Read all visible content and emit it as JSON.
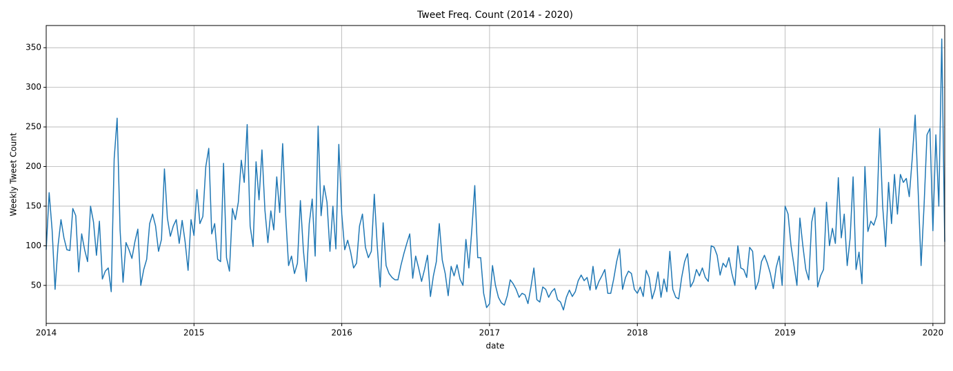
{
  "chart_data": {
    "type": "line",
    "title": "Tweet Freq. Count (2014 - 2020)",
    "x_label": "date",
    "y_label": "Weekly Tweet Count",
    "color": "#1f77b4",
    "grid": true,
    "xlim": [
      2014,
      2020.08
    ],
    "xticks": [
      2014,
      2015,
      2016,
      2017,
      2018,
      2019,
      2020
    ],
    "ylim": [
      2,
      378
    ],
    "yticks": [
      50,
      100,
      150,
      200,
      250,
      300,
      350
    ],
    "x": [
      2014.0,
      2014.02,
      2014.04,
      2014.06,
      2014.08,
      2014.1,
      2014.12,
      2014.14,
      2014.16,
      2014.18,
      2014.2,
      2014.22,
      2014.24,
      2014.26,
      2014.28,
      2014.3,
      2014.32,
      2014.34,
      2014.36,
      2014.38,
      2014.4,
      2014.42,
      2014.44,
      2014.46,
      2014.48,
      2014.5,
      2014.52,
      2014.54,
      2014.56,
      2014.58,
      2014.6,
      2014.62,
      2014.64,
      2014.66,
      2014.68,
      2014.7,
      2014.72,
      2014.74,
      2014.76,
      2014.78,
      2014.8,
      2014.82,
      2014.84,
      2014.86,
      2014.88,
      2014.9,
      2014.92,
      2014.94,
      2014.96,
      2014.98,
      2015.0,
      2015.02,
      2015.04,
      2015.06,
      2015.08,
      2015.1,
      2015.12,
      2015.14,
      2015.16,
      2015.18,
      2015.2,
      2015.22,
      2015.24,
      2015.26,
      2015.28,
      2015.3,
      2015.32,
      2015.34,
      2015.36,
      2015.38,
      2015.4,
      2015.42,
      2015.44,
      2015.46,
      2015.48,
      2015.5,
      2015.52,
      2015.54,
      2015.56,
      2015.58,
      2015.6,
      2015.62,
      2015.64,
      2015.66,
      2015.68,
      2015.7,
      2015.72,
      2015.74,
      2015.76,
      2015.78,
      2015.8,
      2015.82,
      2015.84,
      2015.86,
      2015.88,
      2015.9,
      2015.92,
      2015.94,
      2015.96,
      2015.98,
      2016.0,
      2016.02,
      2016.04,
      2016.06,
      2016.08,
      2016.1,
      2016.12,
      2016.14,
      2016.16,
      2016.18,
      2016.2,
      2016.22,
      2016.24,
      2016.26,
      2016.28,
      2016.3,
      2016.32,
      2016.34,
      2016.36,
      2016.38,
      2016.4,
      2016.42,
      2016.44,
      2016.46,
      2016.48,
      2016.5,
      2016.52,
      2016.54,
      2016.56,
      2016.58,
      2016.6,
      2016.62,
      2016.64,
      2016.66,
      2016.68,
      2016.7,
      2016.72,
      2016.74,
      2016.76,
      2016.78,
      2016.8,
      2016.82,
      2016.84,
      2016.86,
      2016.88,
      2016.9,
      2016.92,
      2016.94,
      2016.96,
      2016.98,
      2017.0,
      2017.02,
      2017.04,
      2017.06,
      2017.08,
      2017.1,
      2017.12,
      2017.14,
      2017.16,
      2017.18,
      2017.2,
      2017.22,
      2017.24,
      2017.26,
      2017.28,
      2017.3,
      2017.32,
      2017.34,
      2017.36,
      2017.38,
      2017.4,
      2017.42,
      2017.44,
      2017.46,
      2017.48,
      2017.5,
      2017.52,
      2017.54,
      2017.56,
      2017.58,
      2017.6,
      2017.62,
      2017.64,
      2017.66,
      2017.68,
      2017.7,
      2017.72,
      2017.74,
      2017.76,
      2017.78,
      2017.8,
      2017.82,
      2017.84,
      2017.86,
      2017.88,
      2017.9,
      2017.92,
      2017.94,
      2017.96,
      2017.98,
      2018.0,
      2018.02,
      2018.04,
      2018.06,
      2018.08,
      2018.1,
      2018.12,
      2018.14,
      2018.16,
      2018.18,
      2018.2,
      2018.22,
      2018.24,
      2018.26,
      2018.28,
      2018.3,
      2018.32,
      2018.34,
      2018.36,
      2018.38,
      2018.4,
      2018.42,
      2018.44,
      2018.46,
      2018.48,
      2018.5,
      2018.52,
      2018.54,
      2018.56,
      2018.58,
      2018.6,
      2018.62,
      2018.64,
      2018.66,
      2018.68,
      2018.7,
      2018.72,
      2018.74,
      2018.76,
      2018.78,
      2018.8,
      2018.82,
      2018.84,
      2018.86,
      2018.88,
      2018.9,
      2018.92,
      2018.94,
      2018.96,
      2018.98,
      2019.0,
      2019.02,
      2019.04,
      2019.06,
      2019.08,
      2019.1,
      2019.12,
      2019.14,
      2019.16,
      2019.18,
      2019.2,
      2019.22,
      2019.24,
      2019.26,
      2019.28,
      2019.3,
      2019.32,
      2019.34,
      2019.36,
      2019.38,
      2019.4,
      2019.42,
      2019.44,
      2019.46,
      2019.48,
      2019.5,
      2019.52,
      2019.54,
      2019.56,
      2019.58,
      2019.6,
      2019.62,
      2019.64,
      2019.66,
      2019.68,
      2019.7,
      2019.72,
      2019.74,
      2019.76,
      2019.78,
      2019.8,
      2019.82,
      2019.84,
      2019.86,
      2019.88,
      2019.9,
      2019.92,
      2019.94,
      2019.96,
      2019.98,
      2020.0,
      2020.02,
      2020.04,
      2020.06,
      2020.08
    ],
    "values": [
      95,
      167,
      120,
      45,
      100,
      133,
      110,
      95,
      94,
      147,
      138,
      67,
      115,
      95,
      80,
      150,
      130,
      88,
      131,
      58,
      68,
      72,
      42,
      210,
      261,
      120,
      54,
      104,
      95,
      84,
      105,
      121,
      50,
      70,
      83,
      128,
      140,
      125,
      93,
      108,
      197,
      135,
      112,
      125,
      133,
      103,
      132,
      105,
      69,
      133,
      113,
      171,
      128,
      137,
      200,
      223,
      115,
      128,
      83,
      80,
      204,
      85,
      68,
      147,
      133,
      155,
      208,
      180,
      253,
      125,
      99,
      206,
      158,
      221,
      145,
      104,
      144,
      120,
      187,
      142,
      229,
      140,
      75,
      87,
      65,
      78,
      157,
      95,
      55,
      128,
      159,
      87,
      251,
      138,
      176,
      155,
      93,
      150,
      96,
      228,
      140,
      95,
      107,
      92,
      72,
      78,
      125,
      140,
      98,
      85,
      93,
      165,
      100,
      48,
      129,
      75,
      65,
      60,
      57,
      57,
      75,
      90,
      103,
      115,
      59,
      87,
      72,
      55,
      70,
      88,
      36,
      62,
      80,
      128,
      82,
      65,
      37,
      74,
      62,
      76,
      58,
      50,
      108,
      72,
      120,
      176,
      85,
      85,
      40,
      22,
      27,
      75,
      50,
      35,
      28,
      25,
      37,
      57,
      52,
      45,
      35,
      40,
      38,
      27,
      48,
      72,
      32,
      29,
      48,
      45,
      35,
      42,
      46,
      32,
      29,
      19,
      35,
      44,
      36,
      42,
      56,
      63,
      56,
      60,
      44,
      74,
      45,
      55,
      62,
      70,
      40,
      40,
      58,
      80,
      96,
      45,
      60,
      68,
      65,
      45,
      40,
      48,
      36,
      69,
      60,
      33,
      45,
      67,
      35,
      58,
      42,
      93,
      45,
      35,
      33,
      60,
      80,
      90,
      48,
      55,
      70,
      62,
      72,
      60,
      55,
      100,
      98,
      88,
      63,
      78,
      73,
      85,
      65,
      50,
      100,
      72,
      70,
      60,
      98,
      93,
      45,
      55,
      80,
      88,
      78,
      65,
      46,
      73,
      87,
      50,
      150,
      140,
      100,
      75,
      50,
      135,
      100,
      70,
      57,
      130,
      148,
      48,
      62,
      70,
      155,
      100,
      122,
      103,
      186,
      110,
      140,
      75,
      110,
      187,
      70,
      92,
      52,
      200,
      118,
      131,
      126,
      138,
      248,
      150,
      99,
      180,
      128,
      190,
      140,
      190,
      180,
      185,
      162,
      210,
      265,
      170,
      75,
      150,
      240,
      248,
      119,
      240,
      150,
      361,
      105
    ]
  }
}
